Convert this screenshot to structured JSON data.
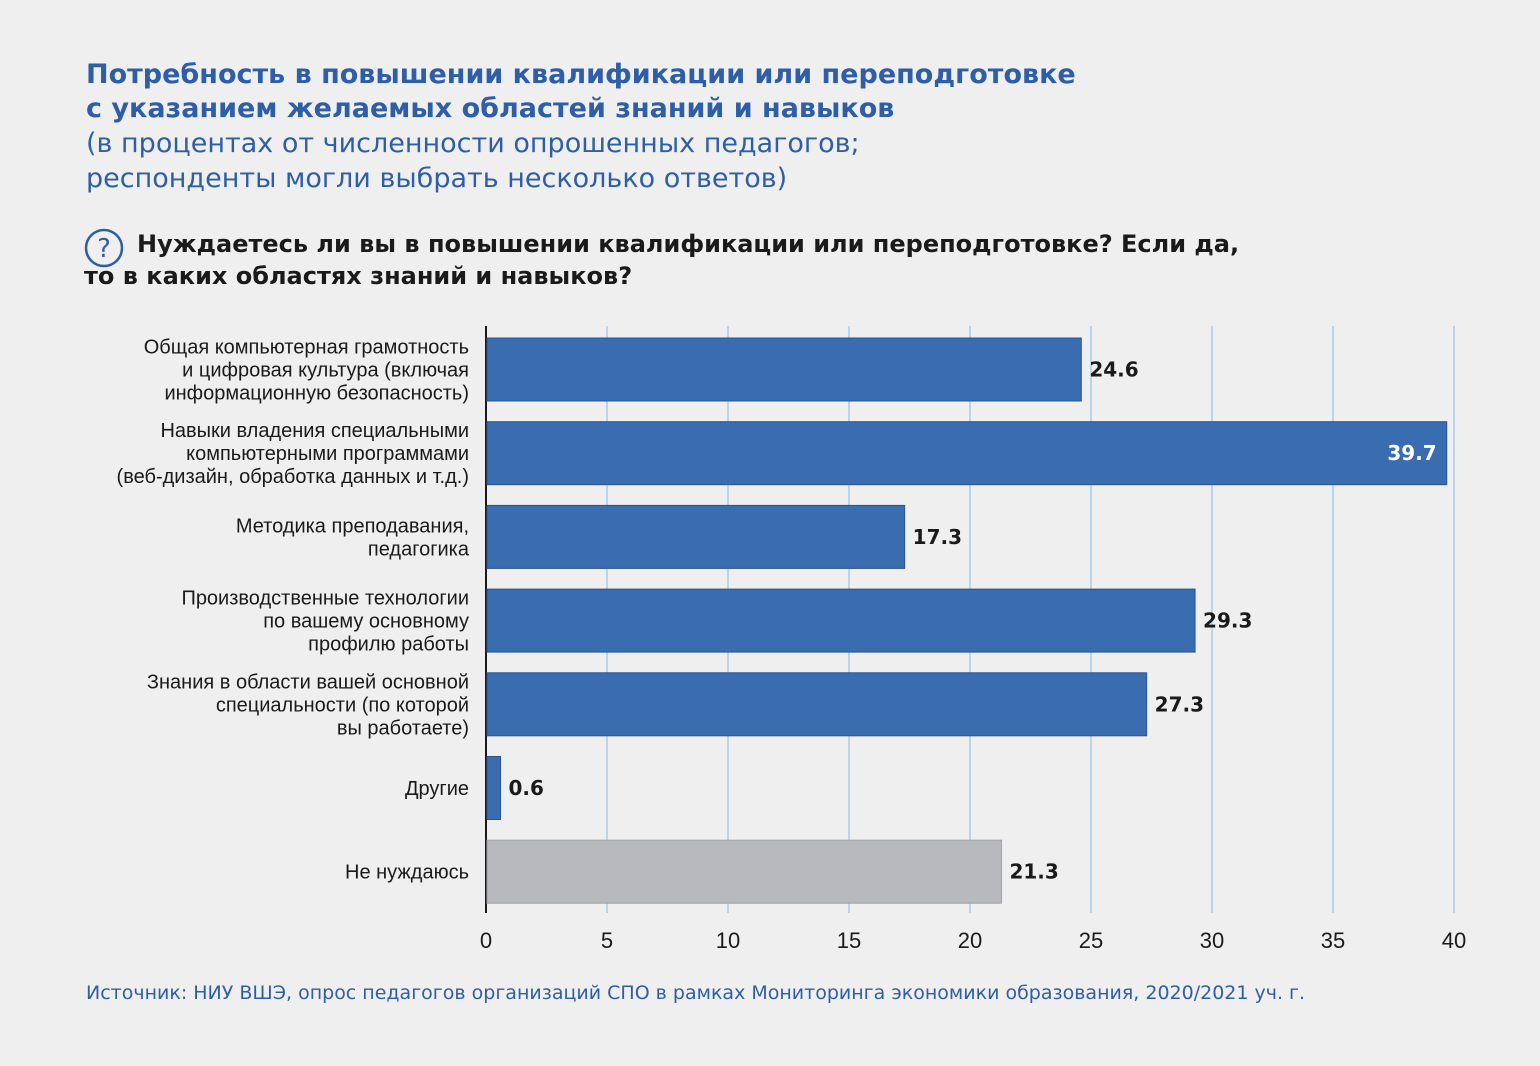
{
  "title": {
    "line1": "Потребность в повышении квалификации или переподготовке",
    "line2": "с указанием желаемых областей знаний и навыков",
    "line3": "(в процентах от численности опрошенных педагогов;",
    "line4": "респонденты могли выбрать несколько ответов)"
  },
  "question": {
    "icon": "question-circle-icon",
    "line1": "Нуждаетесь ли вы в повышении квалификации или переподготовке? Если да,",
    "line2": "то в каких областях знаний и навыков?"
  },
  "source": "Источник: НИУ ВШЭ, опрос педагогов организаций СПО в рамках Мониторинга экономики образования, 2020/2021 уч. г.",
  "colors": {
    "bar_primary": "#3a6cb0",
    "bar_secondary": "#b8b9bc",
    "title": "#2f5ea8",
    "grid": "#a9cce8"
  },
  "chart_data": {
    "type": "bar",
    "orientation": "horizontal",
    "categories": [
      [
        "Общая компьютерная грамотность",
        "и цифровая культура (включая",
        "информационную безопасность)"
      ],
      [
        "Навыки владения специальными",
        "компьютерными программами",
        "(веб-дизайн, обработка данных и т.д.)"
      ],
      [
        "Методика преподавания,",
        "педагогика"
      ],
      [
        "Производственные технологии",
        "по вашему основному",
        "профилю работы"
      ],
      [
        "Знания в области вашей основной",
        "специальности (по которой",
        "вы работаете)"
      ],
      [
        "Другие"
      ],
      [
        "Не нуждаюсь"
      ]
    ],
    "values": [
      24.6,
      39.7,
      17.3,
      29.3,
      27.3,
      0.6,
      21.3
    ],
    "value_labels": [
      "24.6",
      "39.7",
      "17.3",
      "29.3",
      "27.3",
      "0.6",
      "21.3"
    ],
    "highlight": [
      "primary",
      "primary",
      "primary",
      "primary",
      "primary",
      "primary",
      "secondary"
    ],
    "xlim": [
      0,
      40
    ],
    "xticks": [
      0,
      5,
      10,
      15,
      20,
      25,
      30,
      35,
      40
    ],
    "grid": true
  }
}
